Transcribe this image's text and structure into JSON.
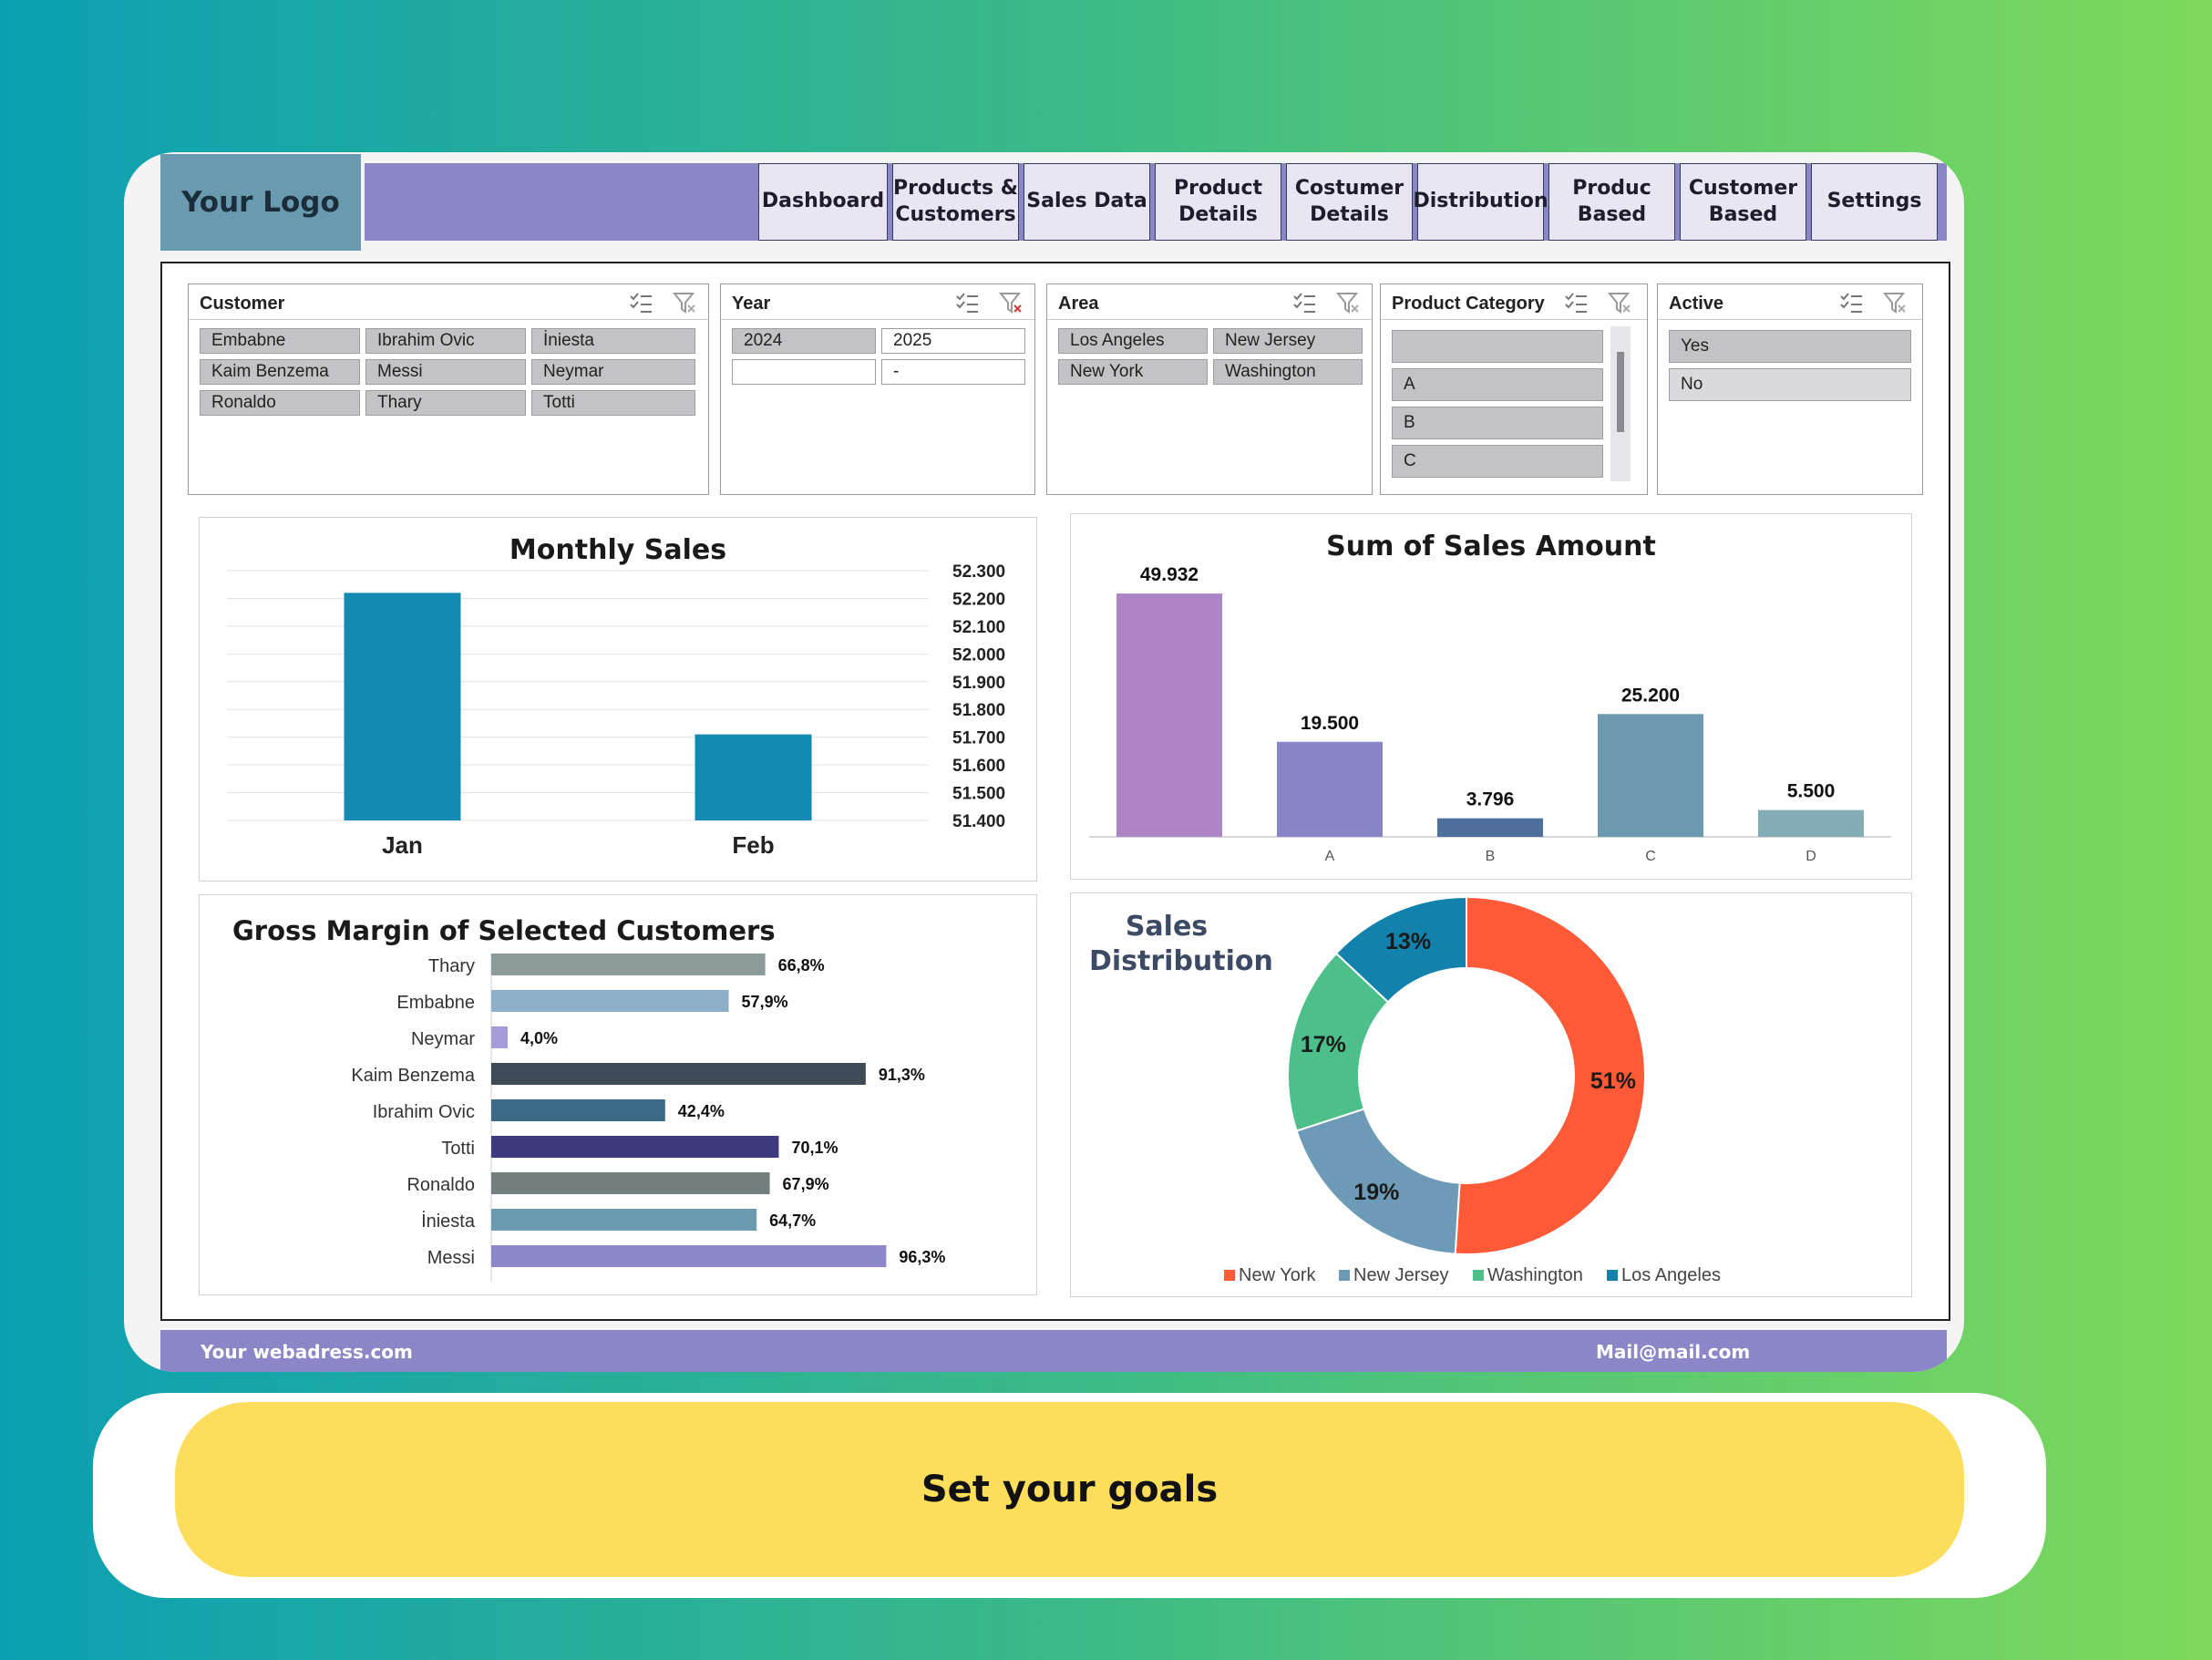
{
  "header": {
    "logo": "Your Logo",
    "nav": [
      "Dashboard",
      "Products &\nCustomers",
      "Sales Data",
      "Product\nDetails",
      "Costumer\nDetails",
      "Distribution",
      "Produc\nBased",
      "Customer\nBased",
      "Settings"
    ]
  },
  "slicers": {
    "customer": {
      "title": "Customer",
      "items": [
        "Embabne",
        "Ibrahim Ovic",
        "İniesta",
        "Kaim Benzema",
        "Messi",
        "Neymar",
        "Ronaldo",
        "Thary",
        "Totti"
      ]
    },
    "year": {
      "title": "Year",
      "items": [
        "2024",
        "2025",
        "",
        "-"
      ]
    },
    "area": {
      "title": "Area",
      "items": [
        "Los Angeles",
        "New Jersey",
        "New York",
        "Washington"
      ]
    },
    "product_category": {
      "title": "Product Category",
      "items": [
        "",
        "A",
        "B",
        "C"
      ]
    },
    "active": {
      "title": "Active",
      "items": [
        "Yes",
        "No"
      ]
    }
  },
  "footer": {
    "website": "Your webadress.com",
    "mail": "Mail@mail.com"
  },
  "cta": {
    "label": "Set your goals"
  },
  "colors": {
    "accent": "#8a86c8",
    "logo_bg": "#6a9ab0",
    "cta": "#fddd5c",
    "monthly_bar": "#128ab4",
    "new_york": "#fe5a38",
    "new_jersey": "#6d9ab6",
    "washington": "#4dbf8a",
    "los_angeles": "#1282ac"
  },
  "chart_data": [
    {
      "type": "bar",
      "title": "Monthly Sales",
      "categories": [
        "Jan",
        "Feb"
      ],
      "values": [
        52.22,
        51.71
      ],
      "yticks": [
        "52.300",
        "52.200",
        "52.100",
        "52.000",
        "51.900",
        "51.800",
        "51.700",
        "51.600",
        "51.500",
        "51.400"
      ],
      "ylim": [
        51.4,
        52.3
      ]
    },
    {
      "type": "bar",
      "title": "Sum of Sales Amount",
      "categories": [
        "",
        "A",
        "B",
        "C",
        "D"
      ],
      "values": [
        49.932,
        19.5,
        3.796,
        25.2,
        5.5
      ],
      "labels": [
        "49.932",
        "19.500",
        "3.796",
        "25.200",
        "5.500"
      ],
      "colors": [
        "#ad84c6",
        "#8784c7",
        "#4e6e9c",
        "#6b9ab0",
        "#84acb6"
      ],
      "ylim": [
        0,
        55
      ]
    },
    {
      "type": "bar",
      "orientation": "horizontal",
      "title": "Gross Margin of Selected Customers",
      "categories": [
        "Thary",
        "Embabne",
        "Neymar",
        "Kaim Benzema",
        "Ibrahim Ovic",
        "Totti",
        "Ronaldo",
        "İniesta",
        "Messi"
      ],
      "values": [
        66.8,
        57.9,
        4.0,
        91.3,
        42.4,
        70.1,
        67.9,
        64.7,
        96.3
      ],
      "labels": [
        "66,8%",
        "57,9%",
        "4,0%",
        "91,3%",
        "42,4%",
        "70,1%",
        "67,9%",
        "64,7%",
        "96,3%"
      ],
      "colors": [
        "#8c9a9a",
        "#8db0c8",
        "#a49bd8",
        "#3e4a55",
        "#3a6a85",
        "#3e3a80",
        "#737f7f",
        "#6a9ab0",
        "#8b87c9"
      ],
      "xlim": [
        0,
        100
      ]
    },
    {
      "type": "pie",
      "style": "donut",
      "title": "Sales\nDistribution",
      "categories": [
        "New York",
        "New Jersey",
        "Washington",
        "Los Angeles"
      ],
      "values": [
        51,
        19,
        17,
        13
      ],
      "labels": [
        "51%",
        "19%",
        "17%",
        "13%"
      ],
      "colors": [
        "#fe5a38",
        "#6d9ab6",
        "#4dbf8a",
        "#1282ac"
      ],
      "legend": "bottom"
    }
  ]
}
